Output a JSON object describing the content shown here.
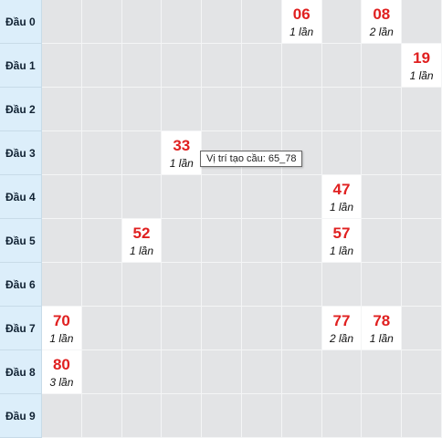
{
  "rows": [
    {
      "label": "Đầu 0",
      "hits": [
        {
          "col": 6,
          "number": "06",
          "count": "1 lần"
        },
        {
          "col": 8,
          "number": "08",
          "count": "2 lần"
        }
      ]
    },
    {
      "label": "Đầu 1",
      "hits": [
        {
          "col": 9,
          "number": "19",
          "count": "1 lần"
        }
      ]
    },
    {
      "label": "Đầu 2",
      "hits": []
    },
    {
      "label": "Đầu 3",
      "hits": [
        {
          "col": 3,
          "number": "33",
          "count": "1 lần"
        }
      ]
    },
    {
      "label": "Đầu 4",
      "hits": [
        {
          "col": 7,
          "number": "47",
          "count": "1 lần"
        }
      ]
    },
    {
      "label": "Đầu 5",
      "hits": [
        {
          "col": 2,
          "number": "52",
          "count": "1 lần"
        },
        {
          "col": 7,
          "number": "57",
          "count": "1 lần"
        }
      ]
    },
    {
      "label": "Đầu 6",
      "hits": []
    },
    {
      "label": "Đầu 7",
      "hits": [
        {
          "col": 0,
          "number": "70",
          "count": "1 lần"
        },
        {
          "col": 7,
          "number": "77",
          "count": "2 lần"
        },
        {
          "col": 8,
          "number": "78",
          "count": "1 lần"
        }
      ]
    },
    {
      "label": "Đầu 8",
      "hits": [
        {
          "col": 0,
          "number": "80",
          "count": "3 lần"
        }
      ]
    },
    {
      "label": "Đầu 9",
      "hits": []
    }
  ],
  "tooltip": {
    "text": "Vị trí tạo cầu: 65_78"
  },
  "colors": {
    "number": "#e02020",
    "row_header_bg": "#dceefa",
    "empty_cell_bg": "#e3e4e6",
    "hit_cell_bg": "#ffffff"
  }
}
